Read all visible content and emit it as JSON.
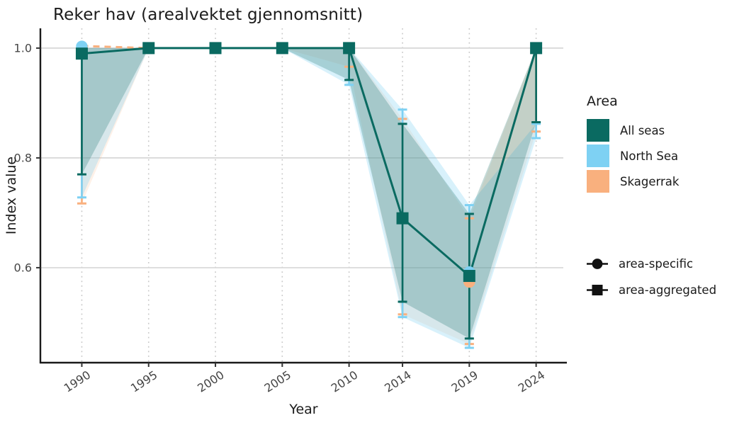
{
  "title": "Reker hav (arealvektet gjennomsnitt)",
  "chart_data": {
    "type": "line",
    "title": "Reker hav (arealvektet gjennomsnitt)",
    "xlabel": "Year",
    "ylabel": "Index value",
    "x_ticks": [
      1990,
      1995,
      2000,
      2005,
      2010,
      2014,
      2019,
      2024
    ],
    "y_ticks": [
      0.6,
      0.8,
      1.0
    ],
    "xlim": [
      1986.9,
      2026.3
    ],
    "ylim": [
      0.427,
      1.036
    ],
    "grid": {
      "horizontal": "solid",
      "vertical": "dotted"
    },
    "legend_position": "right",
    "series": [
      {
        "name": "All seas",
        "color": "#0a6a61",
        "marker": "square",
        "role": "area-aggregated",
        "line": {
          "points": [
            [
              1990,
              0.99
            ],
            [
              1995,
              1.0
            ],
            [
              2000,
              1.0
            ],
            [
              2005,
              1.0
            ],
            [
              2010,
              1.0
            ],
            [
              2014,
              0.69
            ],
            [
              2019,
              0.585
            ],
            [
              2024,
              1.0
            ]
          ],
          "dash": null,
          "width": 3
        },
        "markers": [
          [
            1990,
            0.99
          ],
          [
            1995,
            1.0
          ],
          [
            2000,
            1.0
          ],
          [
            2005,
            1.0
          ],
          [
            2010,
            1.0
          ],
          [
            2014,
            0.69
          ],
          [
            2019,
            0.585
          ],
          [
            2024,
            1.0
          ]
        ],
        "errorbars": [
          [
            1990,
            0.77,
            0.99
          ],
          [
            2010,
            0.942,
            1.0
          ],
          [
            2014,
            0.538,
            0.862
          ],
          [
            2019,
            0.471,
            0.698
          ],
          [
            2024,
            0.865,
            1.0
          ]
        ],
        "band": {
          "upper": [
            [
              1990,
              1.0
            ],
            [
              1995,
              1.0
            ],
            [
              2000,
              1.0
            ],
            [
              2005,
              1.0
            ],
            [
              2010,
              1.0
            ],
            [
              2014,
              0.862
            ],
            [
              2019,
              0.698
            ],
            [
              2024,
              1.0
            ]
          ],
          "lower": [
            [
              1990,
              0.77
            ],
            [
              1995,
              1.0
            ],
            [
              2000,
              1.0
            ],
            [
              2005,
              1.0
            ],
            [
              2010,
              0.942
            ],
            [
              2014,
              0.538
            ],
            [
              2019,
              0.471
            ],
            [
              2024,
              0.865
            ]
          ],
          "fill": "rgba(10,106,97,0.24)"
        }
      },
      {
        "name": "North Sea",
        "color": "#7ed1f3",
        "marker": "circle",
        "role": "area-specific",
        "line": null,
        "markers": [
          [
            1990,
            1.003
          ],
          [
            2019,
            0.592
          ]
        ],
        "errorbars": [
          [
            1990,
            0.728,
            1.0
          ],
          [
            2010,
            0.933,
            1.0
          ],
          [
            2014,
            0.51,
            0.888
          ],
          [
            2019,
            0.454,
            0.714
          ],
          [
            2024,
            0.836,
            0.862
          ]
        ],
        "band": {
          "upper": [
            [
              1990,
              1.0
            ],
            [
              1995,
              1.0
            ],
            [
              2000,
              1.0
            ],
            [
              2005,
              1.0
            ],
            [
              2010,
              1.0
            ],
            [
              2014,
              0.888
            ],
            [
              2019,
              0.714
            ],
            [
              2024,
              0.862
            ]
          ],
          "lower": [
            [
              1990,
              0.728
            ],
            [
              1995,
              1.0
            ],
            [
              2000,
              1.0
            ],
            [
              2005,
              1.0
            ],
            [
              2010,
              0.933
            ],
            [
              2014,
              0.51
            ],
            [
              2019,
              0.454
            ],
            [
              2024,
              0.836
            ]
          ],
          "fill": "rgba(126,209,243,0.30)"
        }
      },
      {
        "name": "Skagerrak",
        "color": "#f9b07e",
        "marker": "circle",
        "role": "area-specific",
        "line": {
          "points": [
            [
              1990,
              1.004
            ],
            [
              1995,
              1.0
            ]
          ],
          "dash": "9,7",
          "width": 3
        },
        "markers": [
          [
            2019,
            0.574
          ]
        ],
        "errorbars": [
          [
            1990,
            0.717,
            1.0
          ],
          [
            2010,
            0.966,
            1.0
          ],
          [
            2014,
            0.515,
            0.871
          ],
          [
            2019,
            0.461,
            0.69
          ],
          [
            2024,
            0.848,
            1.0
          ]
        ],
        "band": {
          "upper": [
            [
              1990,
              1.0
            ],
            [
              1995,
              1.0
            ],
            [
              2000,
              1.0
            ],
            [
              2005,
              1.0
            ],
            [
              2010,
              1.0
            ],
            [
              2014,
              0.871
            ],
            [
              2019,
              0.69
            ],
            [
              2024,
              1.0
            ]
          ],
          "lower": [
            [
              1990,
              0.717
            ],
            [
              1995,
              1.0
            ],
            [
              2000,
              1.0
            ],
            [
              2005,
              1.0
            ],
            [
              2010,
              0.966
            ],
            [
              2014,
              0.515
            ],
            [
              2019,
              0.461
            ],
            [
              2024,
              0.848
            ]
          ],
          "fill": "rgba(249,176,126,0.18)"
        }
      }
    ],
    "legend_area": {
      "title": "Area",
      "items": [
        {
          "label": "All seas",
          "color": "#0a6a61"
        },
        {
          "label": "North Sea",
          "color": "#7ed1f3"
        },
        {
          "label": "Skagerrak",
          "color": "#f9b07e"
        }
      ]
    },
    "legend_shape": {
      "items": [
        {
          "label": "area-specific",
          "marker": "circle"
        },
        {
          "label": "area-aggregated",
          "marker": "square"
        }
      ]
    }
  }
}
